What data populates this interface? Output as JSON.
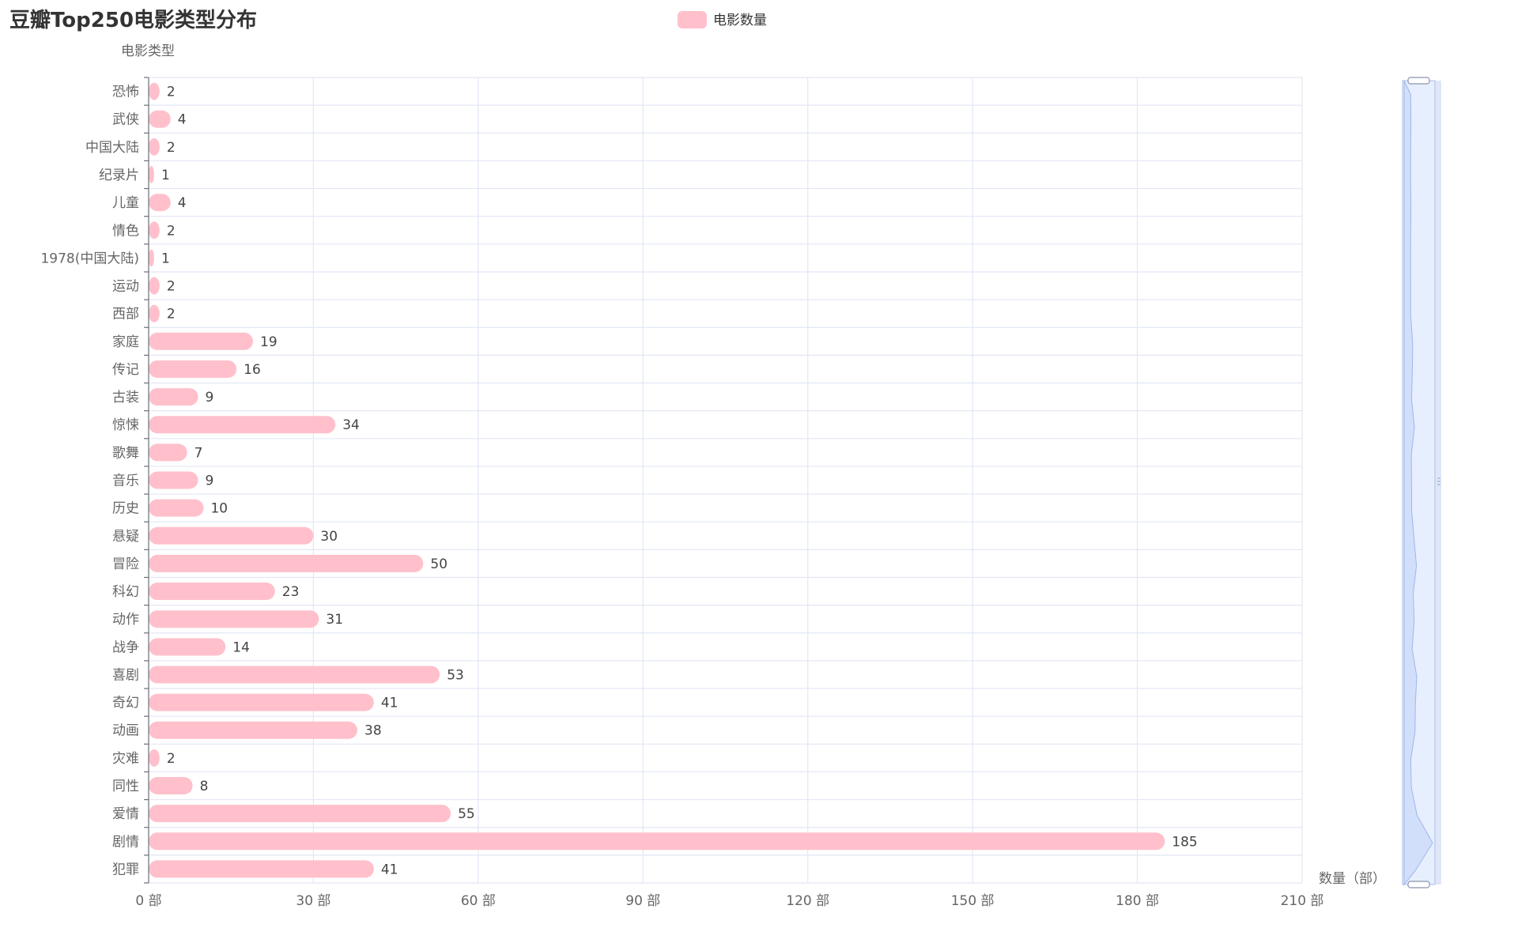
{
  "chart_data": {
    "type": "bar",
    "orientation": "horizontal",
    "title": "豆瓣Top250电影类型分布",
    "ylabel": "电影类型",
    "xlabel": "数量（部）",
    "x_unit_suffix": " 部",
    "xlim": [
      0,
      210
    ],
    "x_ticks": [
      0,
      30,
      60,
      90,
      120,
      150,
      180,
      210
    ],
    "grid": true,
    "legend_placement": "top-center",
    "categories": [
      "恐怖",
      "武侠",
      "中国大陆",
      "纪录片",
      "儿童",
      "情色",
      "1978(中国大陆)",
      "运动",
      "西部",
      "家庭",
      "传记",
      "古装",
      "惊悚",
      "歌舞",
      "音乐",
      "历史",
      "悬疑",
      "冒险",
      "科幻",
      "动作",
      "战争",
      "喜剧",
      "奇幻",
      "动画",
      "灾难",
      "同性",
      "爱情",
      "剧情",
      "犯罪"
    ],
    "series": [
      {
        "name": "电影数量",
        "color": "#ffc0cb",
        "values": [
          2,
          4,
          2,
          1,
          4,
          2,
          1,
          2,
          2,
          19,
          16,
          9,
          34,
          7,
          9,
          10,
          30,
          50,
          23,
          31,
          14,
          53,
          41,
          38,
          2,
          8,
          55,
          185,
          41
        ]
      }
    ],
    "data_zoom": {
      "orientation": "vertical",
      "range_start_percent": 0,
      "range_end_percent": 100
    }
  },
  "colors": {
    "bar": "#ffc0cb",
    "grid": "#e3e7f5",
    "axis": "#6e7079",
    "zoom_fill": "#e5edfd",
    "zoom_shadow": "#d2e0fb"
  }
}
